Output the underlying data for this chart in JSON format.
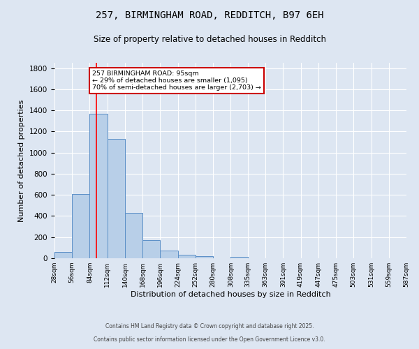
{
  "title": "257, BIRMINGHAM ROAD, REDDITCH, B97 6EH",
  "subtitle": "Size of property relative to detached houses in Redditch",
  "xlabel": "Distribution of detached houses by size in Redditch",
  "ylabel": "Number of detached properties",
  "bin_edges": [
    28,
    56,
    84,
    112,
    140,
    168,
    196,
    224,
    252,
    280,
    308,
    335,
    363,
    391,
    419,
    447,
    475,
    503,
    531,
    559,
    587
  ],
  "bar_heights": [
    60,
    610,
    1370,
    1130,
    430,
    170,
    70,
    35,
    20,
    0,
    15,
    0,
    0,
    0,
    0,
    0,
    0,
    0,
    0,
    0
  ],
  "bar_color": "#b8cfe8",
  "bar_edge_color": "#5b8fc7",
  "bg_color": "#dde6f2",
  "grid_color": "#ffffff",
  "red_line_x": 95,
  "ylim": [
    0,
    1850
  ],
  "yticks": [
    0,
    200,
    400,
    600,
    800,
    1000,
    1200,
    1400,
    1600,
    1800
  ],
  "annotation_text": "257 BIRMINGHAM ROAD: 95sqm\n← 29% of detached houses are smaller (1,095)\n70% of semi-detached houses are larger (2,703) →",
  "annotation_box_color": "#ffffff",
  "annotation_box_edge": "#cc0000",
  "footer1": "Contains HM Land Registry data © Crown copyright and database right 2025.",
  "footer2": "Contains public sector information licensed under the Open Government Licence v3.0."
}
